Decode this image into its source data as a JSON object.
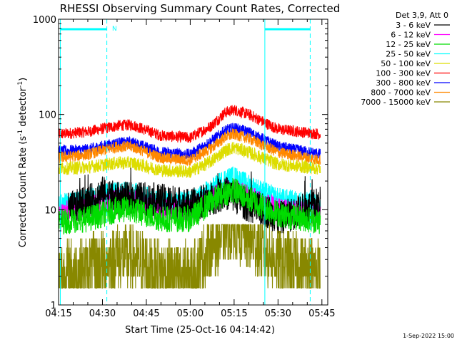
{
  "chart_data": {
    "type": "line",
    "title": "RHESSI Observing Summary Count Rates, Corrected",
    "xlabel": "Start Time (25-Oct-16 04:14:42)",
    "ylabel_main": "Corrected Count Rate (s",
    "ylabel_sup1": "-1",
    "ylabel_mid": " detector",
    "ylabel_sup2": "-1",
    "ylabel_end": ")",
    "yscale": "log",
    "ylim": [
      1,
      1000
    ],
    "xlim_min": [
      0,
      92
    ],
    "x_tick_minutes": [
      0,
      15,
      30,
      45,
      60,
      75,
      90
    ],
    "x_tick_labels": [
      "04:15",
      "04:30",
      "04:45",
      "05:00",
      "05:15",
      "05:30",
      "05:45"
    ],
    "y_tick_values": [
      1,
      10,
      100,
      1000
    ],
    "y_tick_labels": [
      "1",
      "10",
      "100",
      "1000"
    ],
    "legend_header": "Det 3,9, Att 0",
    "legend": [
      {
        "label": "3 - 6 keV",
        "color": "#000000"
      },
      {
        "label": "6 - 12 keV",
        "color": "#ff00ff"
      },
      {
        "label": "12 - 25 keV",
        "color": "#00dd00"
      },
      {
        "label": "25 - 50 keV",
        "color": "#00ffff"
      },
      {
        "label": "50 - 100 keV",
        "color": "#dddd00"
      },
      {
        "label": "100 - 300 keV",
        "color": "#ff0000"
      },
      {
        "label": "300 - 800 keV",
        "color": "#0000ff"
      },
      {
        "label": "800 - 7000 keV",
        "color": "#ff8800"
      },
      {
        "label": "7000 - 15000 keV",
        "color": "#888800"
      }
    ],
    "series": [
      {
        "name": "100 - 300 keV",
        "color": "#ff0000",
        "noise": 0.06,
        "points": [
          [
            0,
            62
          ],
          [
            10,
            66
          ],
          [
            20,
            76
          ],
          [
            25,
            78
          ],
          [
            35,
            60
          ],
          [
            45,
            57
          ],
          [
            52,
            75
          ],
          [
            57,
            105
          ],
          [
            60,
            112
          ],
          [
            65,
            100
          ],
          [
            75,
            70
          ],
          [
            90,
            62
          ]
        ]
      },
      {
        "name": "300 - 800 keV",
        "color": "#0000ff",
        "noise": 0.06,
        "points": [
          [
            0,
            41
          ],
          [
            10,
            43
          ],
          [
            20,
            50
          ],
          [
            25,
            51
          ],
          [
            35,
            40
          ],
          [
            45,
            38
          ],
          [
            52,
            52
          ],
          [
            57,
            68
          ],
          [
            60,
            72
          ],
          [
            65,
            65
          ],
          [
            75,
            46
          ],
          [
            90,
            38
          ]
        ]
      },
      {
        "name": "800 - 7000 keV",
        "color": "#ff8800",
        "noise": 0.06,
        "points": [
          [
            0,
            35
          ],
          [
            10,
            38
          ],
          [
            20,
            46
          ],
          [
            25,
            46
          ],
          [
            35,
            35
          ],
          [
            45,
            33
          ],
          [
            52,
            44
          ],
          [
            57,
            58
          ],
          [
            60,
            62
          ],
          [
            65,
            56
          ],
          [
            75,
            40
          ],
          [
            90,
            33
          ]
        ]
      },
      {
        "name": "50 - 100 keV",
        "color": "#dddd00",
        "noise": 0.07,
        "points": [
          [
            0,
            27
          ],
          [
            10,
            28
          ],
          [
            20,
            31
          ],
          [
            25,
            31
          ],
          [
            35,
            26
          ],
          [
            45,
            25
          ],
          [
            52,
            32
          ],
          [
            57,
            42
          ],
          [
            60,
            45
          ],
          [
            65,
            40
          ],
          [
            75,
            30
          ],
          [
            90,
            27
          ]
        ]
      },
      {
        "name": "25 - 50 keV",
        "color": "#00ffff",
        "noise": 0.12,
        "points": [
          [
            0,
            11
          ],
          [
            10,
            13
          ],
          [
            20,
            15
          ],
          [
            25,
            15
          ],
          [
            35,
            12
          ],
          [
            45,
            12
          ],
          [
            52,
            16
          ],
          [
            57,
            21
          ],
          [
            60,
            22
          ],
          [
            65,
            18
          ],
          [
            75,
            13
          ],
          [
            90,
            11
          ]
        ]
      },
      {
        "name": "6 - 12 keV",
        "color": "#ff00ff",
        "noise": 0.12,
        "points": [
          [
            0,
            9
          ],
          [
            10,
            11
          ],
          [
            20,
            13
          ],
          [
            25,
            13
          ],
          [
            35,
            10
          ],
          [
            45,
            10
          ],
          [
            52,
            13
          ],
          [
            57,
            16
          ],
          [
            60,
            16
          ],
          [
            65,
            14
          ],
          [
            75,
            10
          ],
          [
            90,
            9
          ]
        ]
      },
      {
        "name": "3 - 6 keV",
        "color": "#000000",
        "noise": 0.18,
        "points": [
          [
            3,
            10
          ],
          [
            10,
            12
          ],
          [
            15,
            15
          ],
          [
            20,
            13
          ],
          [
            30,
            13
          ],
          [
            40,
            12
          ],
          [
            45,
            11
          ],
          [
            52,
            13
          ],
          [
            57,
            15
          ],
          [
            60,
            14
          ],
          [
            65,
            11
          ],
          [
            72,
            9.5
          ],
          [
            75,
            8
          ],
          [
            80,
            9
          ],
          [
            90,
            12
          ]
        ]
      },
      {
        "name": "12 - 25 keV",
        "color": "#00dd00",
        "noise": 0.14,
        "points": [
          [
            0,
            7.5
          ],
          [
            10,
            8
          ],
          [
            20,
            10
          ],
          [
            25,
            10
          ],
          [
            35,
            8
          ],
          [
            45,
            8
          ],
          [
            52,
            12
          ],
          [
            57,
            15
          ],
          [
            60,
            16
          ],
          [
            65,
            13
          ],
          [
            75,
            9
          ],
          [
            90,
            7.5
          ]
        ]
      },
      {
        "name": "7000 - 15000 keV",
        "color": "#888800",
        "noise": 0.35,
        "points": [
          [
            0,
            2.1
          ],
          [
            10,
            2.4
          ],
          [
            20,
            3.3
          ],
          [
            25,
            3.0
          ],
          [
            35,
            2.2
          ],
          [
            45,
            2.0
          ],
          [
            52,
            4.0
          ],
          [
            57,
            6.0
          ],
          [
            60,
            6.5
          ],
          [
            65,
            5.0
          ],
          [
            75,
            2.8
          ],
          [
            90,
            2.3
          ]
        ]
      }
    ],
    "attenuator_bars": [
      [
        0.6,
        16.5
      ],
      [
        70.5,
        86
      ]
    ],
    "attenuator_label": "N",
    "vlines_solid": [
      0.6,
      70.5
    ],
    "vlines_dashed": [
      16.5,
      86
    ],
    "footer_date": "1-Sep-2022 15:00"
  }
}
